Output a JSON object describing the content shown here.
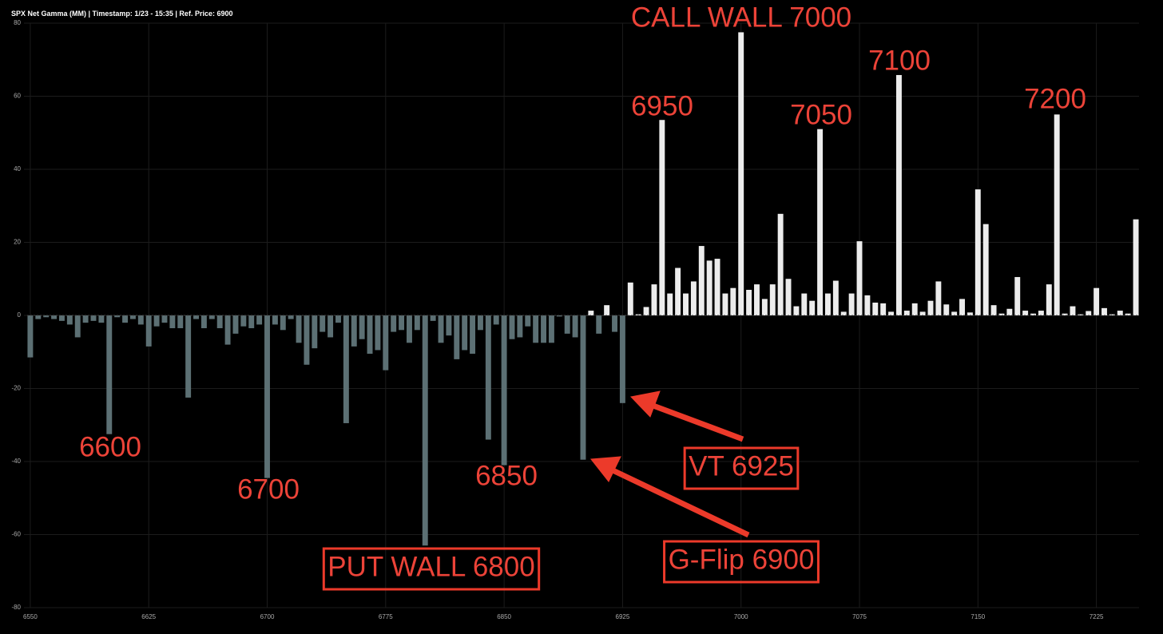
{
  "chart_data": {
    "type": "bar",
    "title": "SPX Net Gamma (MM) | Timestamp: 1/23 - 15:35  | Ref. Price: 6900",
    "x": [
      6550,
      6555,
      6560,
      6565,
      6570,
      6575,
      6580,
      6585,
      6590,
      6595,
      6600,
      6605,
      6610,
      6615,
      6620,
      6625,
      6630,
      6635,
      6640,
      6645,
      6650,
      6655,
      6660,
      6665,
      6670,
      6675,
      6680,
      6685,
      6690,
      6695,
      6700,
      6705,
      6710,
      6715,
      6720,
      6725,
      6730,
      6735,
      6740,
      6745,
      6750,
      6755,
      6760,
      6765,
      6770,
      6775,
      6780,
      6785,
      6790,
      6795,
      6800,
      6805,
      6810,
      6815,
      6820,
      6825,
      6830,
      6835,
      6840,
      6845,
      6850,
      6855,
      6860,
      6865,
      6870,
      6875,
      6880,
      6885,
      6890,
      6895,
      6900,
      6905,
      6910,
      6915,
      6920,
      6925,
      6930,
      6935,
      6940,
      6945,
      6950,
      6955,
      6960,
      6965,
      6970,
      6975,
      6980,
      6985,
      6990,
      6995,
      7000,
      7005,
      7010,
      7015,
      7020,
      7025,
      7030,
      7035,
      7040,
      7045,
      7050,
      7055,
      7060,
      7065,
      7070,
      7075,
      7080,
      7085,
      7090,
      7095,
      7100,
      7105,
      7110,
      7115,
      7120,
      7125,
      7130,
      7135,
      7140,
      7145,
      7150,
      7155,
      7160,
      7165,
      7170,
      7175,
      7180,
      7185,
      7190,
      7195,
      7200,
      7205,
      7210,
      7215,
      7220,
      7225,
      7230,
      7235,
      7240,
      7245,
      7250
    ],
    "values": [
      -11.5,
      -1,
      -0.5,
      -1,
      -1.5,
      -2.5,
      -6,
      -2,
      -1.5,
      -2,
      -32.5,
      -0.5,
      -2,
      -1,
      -2.5,
      -8.5,
      -3,
      -2,
      -3.5,
      -3.5,
      -22.5,
      -1,
      -3.5,
      -1,
      -3.5,
      -8,
      -5,
      -3,
      -3.5,
      -2.5,
      -44.5,
      -2.5,
      -4,
      -1,
      -7.5,
      -13.5,
      -9,
      -4.5,
      -6,
      -2,
      -29.5,
      -8.5,
      -6.5,
      -10.5,
      -9.5,
      -15,
      -4.5,
      -4,
      -7.5,
      -4,
      -63,
      -1.5,
      -7.5,
      -5.5,
      -12,
      -9.5,
      -10.5,
      -4,
      -34,
      -2.5,
      -41,
      -6.5,
      -6,
      -3,
      -7.5,
      -7.5,
      -7.5,
      -0.3,
      -5,
      -6,
      -39.5,
      1.3,
      -5,
      2.8,
      -4.5,
      -24,
      9,
      0.3,
      2.3,
      8.5,
      53.5,
      6,
      13,
      6,
      9.3,
      19,
      15,
      15.5,
      6,
      7.5,
      77.5,
      7,
      8.5,
      4.5,
      8.5,
      27.8,
      10,
      2.5,
      6,
      4,
      51,
      6,
      9.5,
      1,
      6,
      20.3,
      5.5,
      3.5,
      3.3,
      1,
      65.8,
      1.3,
      3.3,
      1,
      4,
      9.3,
      3,
      1,
      4.5,
      0.8,
      34.5,
      25,
      2.8,
      0.5,
      1.8,
      10.5,
      1.3,
      0.5,
      1.3,
      8.5,
      55,
      0.5,
      2.5,
      0.3,
      1.2,
      7.5,
      2,
      0.3,
      1.3,
      0.5,
      26.3
    ],
    "positive_color": "#ececec",
    "negative_color": "#5c7074",
    "xlim": [
      6546,
      7252
    ],
    "ylim": [
      -80,
      80
    ],
    "xticks": [
      6550,
      6625,
      6700,
      6775,
      6850,
      6925,
      7000,
      7075,
      7150,
      7225
    ],
    "yticks": [
      -80,
      -60,
      -40,
      -20,
      0,
      20,
      40,
      60,
      80
    ],
    "grid": true,
    "annotations": [
      {
        "text": "CALL WALL 7000",
        "boxed": false
      },
      {
        "text": "6950",
        "boxed": false
      },
      {
        "text": "7050",
        "boxed": false
      },
      {
        "text": "7100",
        "boxed": false
      },
      {
        "text": "7200",
        "boxed": false
      },
      {
        "text": "6600",
        "boxed": false
      },
      {
        "text": "6700",
        "boxed": false
      },
      {
        "text": "6850",
        "boxed": false
      },
      {
        "text": "PUT WALL 6800",
        "boxed": true
      },
      {
        "text": "VT 6925",
        "boxed": true
      },
      {
        "text": "G-Flip 6900",
        "boxed": true
      }
    ]
  }
}
